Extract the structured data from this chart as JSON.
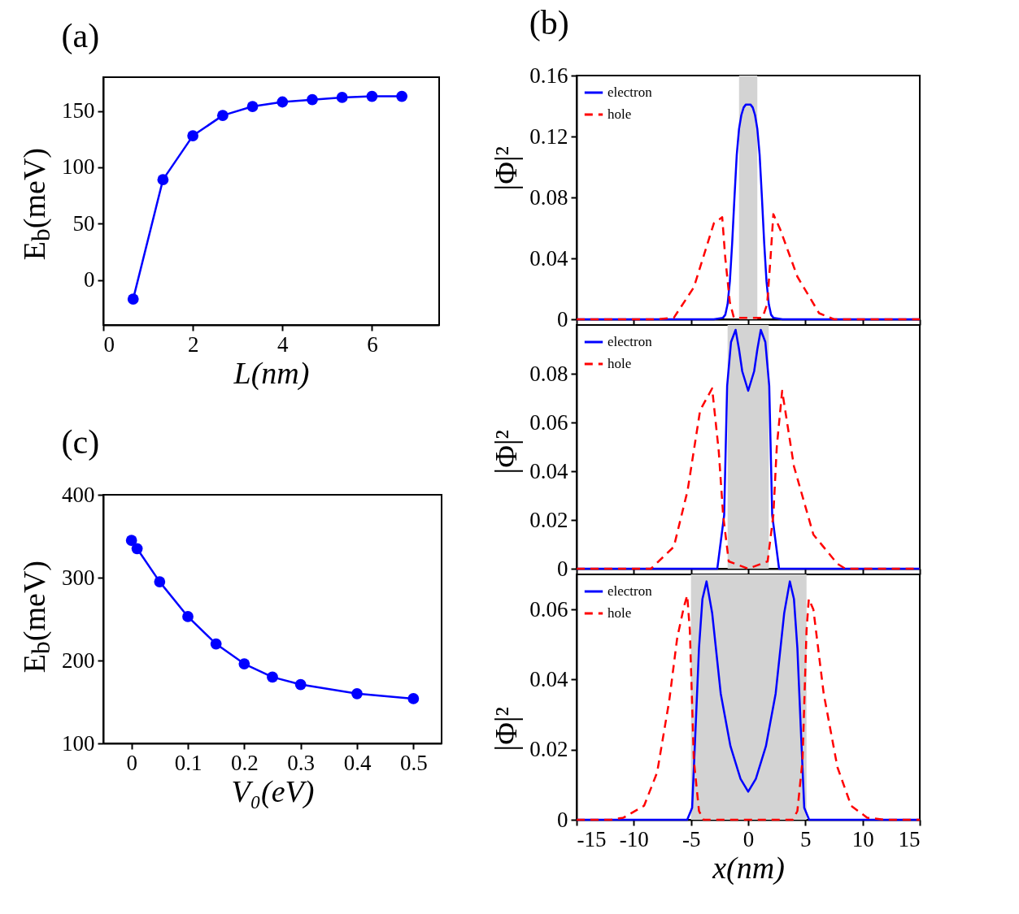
{
  "chart_data": [
    {
      "type": "line",
      "title": "(a)",
      "xlabel": "L(nm)",
      "ylabel": "E$_{b}$(meV)",
      "x": [
        0.667,
        1.333,
        2,
        2.667,
        3.333,
        4,
        4.667,
        5.333,
        6,
        6.667
      ],
      "series": [
        {
          "color": "#0000ff",
          "values": [
            -17,
            89,
            128,
            146,
            154,
            158,
            160,
            162,
            163,
            163
          ]
        }
      ],
      "xlim": [
        0,
        7.5
      ],
      "xticks": [
        0,
        2,
        4,
        6
      ],
      "ylim": [
        -40,
        180
      ],
      "yticks": [
        0,
        50,
        100,
        150
      ],
      "marker": "circle"
    },
    {
      "type": "line",
      "title": "(b)",
      "ylabel": "|Φ|²",
      "series": [
        {
          "name": "electron",
          "color": "#0000ff",
          "line_style": "solid",
          "x": [
            -15,
            -3,
            -2.2,
            -2,
            -1.8,
            -1.6,
            -1.4,
            -1.2,
            -1,
            -0.8,
            -0.6,
            -0.4,
            -0.2,
            0,
            0.2,
            0.4,
            0.6,
            0.8,
            1,
            1.2,
            1.4,
            1.6,
            1.8,
            2,
            2.2,
            3,
            15
          ],
          "values": [
            0,
            0,
            0.001,
            0.003,
            0.01,
            0.025,
            0.05,
            0.08,
            0.108,
            0.125,
            0.134,
            0.139,
            0.141,
            0.141,
            0.141,
            0.139,
            0.134,
            0.125,
            0.108,
            0.08,
            0.05,
            0.025,
            0.01,
            0.003,
            0.001,
            0,
            0
          ]
        },
        {
          "name": "hole",
          "color": "#ff0000",
          "line_style": "dashed",
          "x": [
            -15,
            -8,
            -6.5,
            -4.75,
            -3,
            -2.27,
            -2,
            -1.6,
            -1.25,
            0,
            1.25,
            1.66,
            1.95,
            2.2,
            2.8,
            4.3,
            6.2,
            7.5,
            15
          ],
          "values": [
            0,
            0,
            0.001,
            0.021,
            0.063,
            0.067,
            0.04,
            0.011,
            0.001,
            0.001,
            0.001,
            0.01,
            0.04,
            0.069,
            0.059,
            0.028,
            0.004,
            0,
            0
          ]
        }
      ],
      "bands": [
        {
          "axis": "x",
          "from": -0.8,
          "to": 0.8,
          "color": "#d3d3d3"
        }
      ],
      "xlim": [
        -15,
        15
      ],
      "xticks": [
        -15,
        -10,
        -5,
        0,
        5,
        10,
        15
      ],
      "ylim": [
        0,
        0.16
      ],
      "yticks": [
        0,
        0.04,
        0.08,
        0.12,
        0.16
      ],
      "legend": "top left",
      "tick_labels": "y"
    },
    {
      "type": "line",
      "ylabel": "|Φ|²",
      "series": [
        {
          "name": "electron",
          "color": "#0000ff",
          "line_style": "solid",
          "x": [
            -15,
            -2.7,
            -2.1,
            -1.84,
            -1.5,
            -1.1,
            -0.8,
            -0.52,
            0,
            0.52,
            0.8,
            1.1,
            1.5,
            1.84,
            2.1,
            2.7,
            15
          ],
          "values": [
            0,
            0,
            0.022,
            0.075,
            0.093,
            0.098,
            0.09,
            0.081,
            0.073,
            0.081,
            0.09,
            0.098,
            0.093,
            0.075,
            0.022,
            0,
            0
          ]
        },
        {
          "name": "hole",
          "color": "#ff0000",
          "line_style": "dashed",
          "x": [
            -15,
            -8.5,
            -6.5,
            -5.3,
            -4.2,
            -3.15,
            -2.57,
            -2.19,
            -1.7,
            0,
            1.7,
            2.2,
            2.5,
            2.97,
            4,
            5.7,
            7.8,
            8.5,
            15
          ],
          "values": [
            0,
            0,
            0.009,
            0.032,
            0.065,
            0.074,
            0.048,
            0.022,
            0.003,
            0,
            0.003,
            0.022,
            0.05,
            0.073,
            0.042,
            0.014,
            0.002,
            0,
            0
          ]
        }
      ],
      "bands": [
        {
          "axis": "x",
          "from": -1.8,
          "to": 1.8,
          "color": "#d3d3d3"
        }
      ],
      "xlim": [
        -15,
        15
      ],
      "xticks": [
        -15,
        -10,
        -5,
        0,
        5,
        10,
        15
      ],
      "ylim": [
        0,
        0.1
      ],
      "yticks": [
        0,
        0.02,
        0.04,
        0.06,
        0.08
      ],
      "legend": "top left",
      "tick_labels": "y"
    },
    {
      "type": "line",
      "xlabel": "x(nm)",
      "ylabel": "|Φ|²",
      "series": [
        {
          "name": "electron",
          "color": "#0000ff",
          "line_style": "solid",
          "x": [
            -15,
            -5.33,
            -4.9,
            -4.6,
            -4.3,
            -4,
            -3.64,
            -3.15,
            -2.4,
            -1.55,
            -0.67,
            0,
            0.67,
            1.55,
            2.4,
            3.15,
            3.64,
            4,
            4.3,
            4.6,
            4.9,
            5.33,
            15
          ],
          "values": [
            0,
            0,
            0.0034,
            0.026,
            0.049,
            0.063,
            0.068,
            0.059,
            0.036,
            0.021,
            0.0117,
            0.008,
            0.0117,
            0.021,
            0.036,
            0.059,
            0.068,
            0.063,
            0.049,
            0.026,
            0.0034,
            0,
            0
          ]
        },
        {
          "name": "hole",
          "color": "#ff0000",
          "line_style": "dashed",
          "x": [
            -15,
            -12,
            -10.9,
            -9.1,
            -7.96,
            -6.9,
            -6.2,
            -5.6,
            -5.33,
            -5.1,
            -4.75,
            -4.3,
            -3.9,
            0,
            3.9,
            4.3,
            4.75,
            5.1,
            5.3,
            5.7,
            6.6,
            7.8,
            9,
            10.4,
            12,
            15
          ],
          "values": [
            0,
            0,
            0.0006,
            0.004,
            0.0135,
            0.034,
            0.052,
            0.061,
            0.064,
            0.054,
            0.017,
            0.0025,
            0,
            0,
            0,
            0.0025,
            0.017,
            0.054,
            0.063,
            0.06,
            0.036,
            0.015,
            0.004,
            0.0006,
            0,
            0
          ]
        }
      ],
      "bands": [
        {
          "axis": "x",
          "from": -5,
          "to": 5.1,
          "color": "#d3d3d3"
        }
      ],
      "xlim": [
        -15,
        15
      ],
      "xticks": [
        -15,
        -10,
        -5,
        0,
        5,
        10,
        15
      ],
      "ylim": [
        0,
        0.07
      ],
      "yticks": [
        0,
        0.02,
        0.04,
        0.06
      ],
      "legend": "top left"
    },
    {
      "type": "line",
      "title": "(c)",
      "xlabel": "V₀(eV)",
      "ylabel": "E$_{b}$(meV)",
      "x": [
        0,
        0.01,
        0.05,
        0.1,
        0.15,
        0.2,
        0.25,
        0.3,
        0.4,
        0.5
      ],
      "series": [
        {
          "color": "#0000ff",
          "values": [
            345,
            335,
            295,
            253,
            220,
            196,
            180,
            171,
            160,
            154
          ]
        }
      ],
      "xlim": [
        -0.05,
        0.55
      ],
      "xticks": [
        0,
        0.1,
        0.2,
        0.3,
        0.4,
        0.5
      ],
      "ylim": [
        100,
        400
      ],
      "yticks": [
        100,
        200,
        300,
        400
      ],
      "marker": "circle"
    }
  ]
}
